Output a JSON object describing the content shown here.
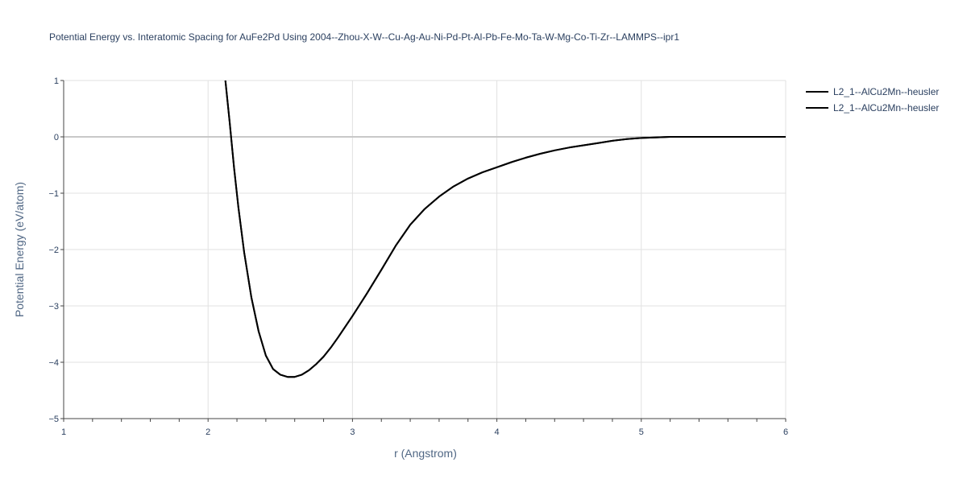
{
  "chart_data": {
    "type": "line",
    "title": "Potential Energy vs. Interatomic Spacing for AuFe2Pd Using 2004--Zhou-X-W--Cu-Ag-Au-Ni-Pd-Pt-Al-Pb-Fe-Mo-Ta-W-Mg-Co-Ti-Zr--LAMMPS--ipr1",
    "xlabel": "r (Angstrom)",
    "ylabel": "Potential Energy (eV/atom)",
    "xlim": [
      1,
      6
    ],
    "ylim": [
      -5,
      1
    ],
    "x_ticks": [
      "1",
      "2",
      "3",
      "4",
      "5",
      "6"
    ],
    "y_ticks": [
      "1",
      "0",
      "−1",
      "−2",
      "−3",
      "−4",
      "−5"
    ],
    "grid": true,
    "legend_position": "top-right",
    "series": [
      {
        "name": "L2_1--AlCu2Mn--heusler",
        "color": "#000000",
        "x": [
          2.12,
          2.15,
          2.18,
          2.21,
          2.25,
          2.3,
          2.35,
          2.4,
          2.45,
          2.5,
          2.55,
          2.6,
          2.65,
          2.7,
          2.75,
          2.8,
          2.85,
          2.9,
          3.0,
          3.1,
          3.2,
          3.3,
          3.4,
          3.5,
          3.6,
          3.7,
          3.8,
          3.9,
          4.0,
          4.1,
          4.2,
          4.3,
          4.4,
          4.5,
          4.6,
          4.7,
          4.8,
          4.9,
          5.0,
          5.1,
          5.2,
          5.3,
          5.4,
          5.6,
          5.8,
          6.0
        ],
        "y": [
          1.0,
          0.25,
          -0.55,
          -1.25,
          -2.05,
          -2.85,
          -3.45,
          -3.88,
          -4.12,
          -4.22,
          -4.26,
          -4.26,
          -4.22,
          -4.14,
          -4.03,
          -3.9,
          -3.74,
          -3.56,
          -3.18,
          -2.78,
          -2.36,
          -1.93,
          -1.56,
          -1.28,
          -1.06,
          -0.88,
          -0.74,
          -0.63,
          -0.54,
          -0.45,
          -0.37,
          -0.3,
          -0.24,
          -0.19,
          -0.15,
          -0.11,
          -0.07,
          -0.04,
          -0.02,
          -0.01,
          0.0,
          0.0,
          0.0,
          0.0,
          0.0,
          0.0
        ]
      },
      {
        "name": "L2_1--AlCu2Mn--heusler",
        "color": "#000000",
        "x": [
          2.12,
          2.15,
          2.18,
          2.21,
          2.25,
          2.3,
          2.35,
          2.4,
          2.45,
          2.5,
          2.55,
          2.6,
          2.65,
          2.7,
          2.75,
          2.8,
          2.85,
          2.9,
          3.0,
          3.1,
          3.2,
          3.3,
          3.4,
          3.5,
          3.6,
          3.7,
          3.8,
          3.9,
          4.0,
          4.1,
          4.2,
          4.3,
          4.4,
          4.5,
          4.6,
          4.7,
          4.8,
          4.9,
          5.0,
          5.1,
          5.2,
          5.3,
          5.4,
          5.6,
          5.8,
          6.0
        ],
        "y": [
          1.0,
          0.25,
          -0.55,
          -1.25,
          -2.05,
          -2.85,
          -3.45,
          -3.88,
          -4.12,
          -4.22,
          -4.26,
          -4.26,
          -4.22,
          -4.14,
          -4.03,
          -3.9,
          -3.74,
          -3.56,
          -3.18,
          -2.78,
          -2.36,
          -1.93,
          -1.56,
          -1.28,
          -1.06,
          -0.88,
          -0.74,
          -0.63,
          -0.54,
          -0.45,
          -0.37,
          -0.3,
          -0.24,
          -0.19,
          -0.15,
          -0.11,
          -0.07,
          -0.04,
          -0.02,
          -0.01,
          0.0,
          0.0,
          0.0,
          0.0,
          0.0,
          0.0
        ]
      }
    ]
  }
}
